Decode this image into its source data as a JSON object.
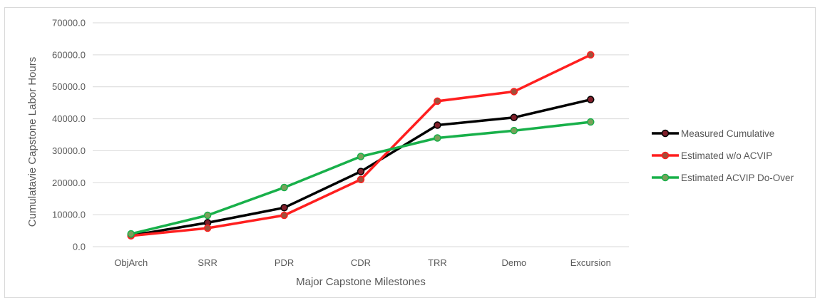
{
  "chart_data": {
    "type": "line",
    "title": "",
    "xlabel": "Major Capstone Milestones",
    "ylabel": "Cumulatavie Capstone Labor Hours",
    "categories": [
      "ObjArch",
      "SRR",
      "PDR",
      "CDR",
      "TRR",
      "Demo",
      "Excursion"
    ],
    "ylim": [
      0,
      70000
    ],
    "yticks": [
      "0.0",
      "10000.0",
      "20000.0",
      "30000.0",
      "40000.0",
      "50000.0",
      "60000.0",
      "70000.0"
    ],
    "grid": true,
    "legend_position": "right",
    "series": [
      {
        "name": "Measured Cumulative",
        "color": "#000000",
        "marker_color": "#7f1f2a",
        "values": [
          3500,
          7500,
          12200,
          23500,
          38000,
          40400,
          46000
        ]
      },
      {
        "name": "Estimated w/o ACVIP",
        "color": "#ff1f1f",
        "marker_color": "#a0503a",
        "values": [
          3400,
          5800,
          9800,
          21000,
          45500,
          48500,
          60000
        ]
      },
      {
        "name": "Estimated ACVIP Do-Over",
        "color": "#18b04a",
        "marker_color": "#7aa05a",
        "values": [
          4000,
          9800,
          18500,
          28200,
          34000,
          36300,
          39000
        ]
      }
    ]
  }
}
